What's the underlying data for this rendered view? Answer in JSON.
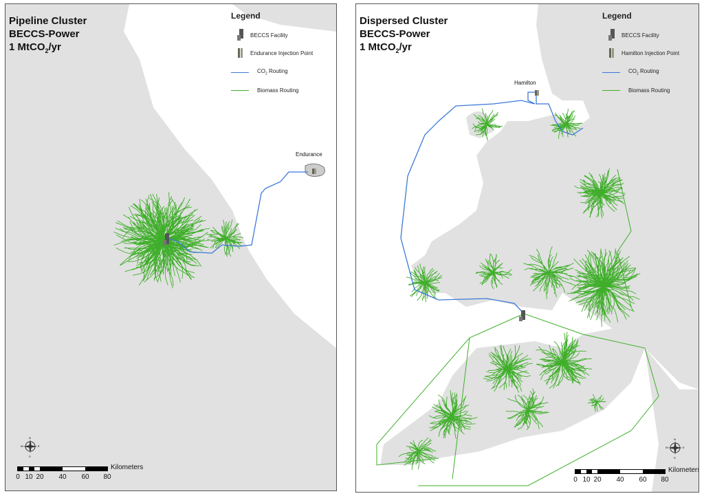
{
  "left_panel": {
    "title": [
      "Pipeline Cluster",
      "BECCS-Power",
      "1 MtCO",
      "2",
      "/yr"
    ],
    "legend": {
      "heading": "Legend",
      "facility": "BECCS Facility",
      "injection": "Endurance Injection Point",
      "co2_routing": [
        "CO",
        "2",
        " Routing"
      ],
      "biomass_routing": "Biomass Routing"
    },
    "place_label": "Endurance",
    "scale": {
      "ticks": [
        "0",
        "10",
        "20",
        "40",
        "60",
        "80"
      ],
      "unit": "Kilometers"
    },
    "compass": {
      "n": "N",
      "s": "S",
      "e": "E",
      "w": "W"
    }
  },
  "right_panel": {
    "title": [
      "Dispersed Cluster",
      "BECCS-Power",
      "1 MtCO",
      "2",
      "/yr"
    ],
    "legend": {
      "heading": "Legend",
      "facility": "BECCS Facility",
      "injection": "Hamilton Injection Point",
      "co2_routing": [
        "CO",
        "2",
        " Routing"
      ],
      "biomass_routing": "Biomass Routing"
    },
    "place_label": "Hamilton",
    "scale": {
      "ticks": [
        "0",
        "10",
        "20",
        "40",
        "60",
        "80"
      ],
      "unit": "Kilometers"
    },
    "compass": {
      "n": "N",
      "s": "S",
      "e": "E",
      "w": "W"
    }
  },
  "colors": {
    "land": "#e1e1e1",
    "sea": "#ffffff",
    "co2_route": "#3a78d8",
    "biomass_route": "#3fae2a"
  }
}
